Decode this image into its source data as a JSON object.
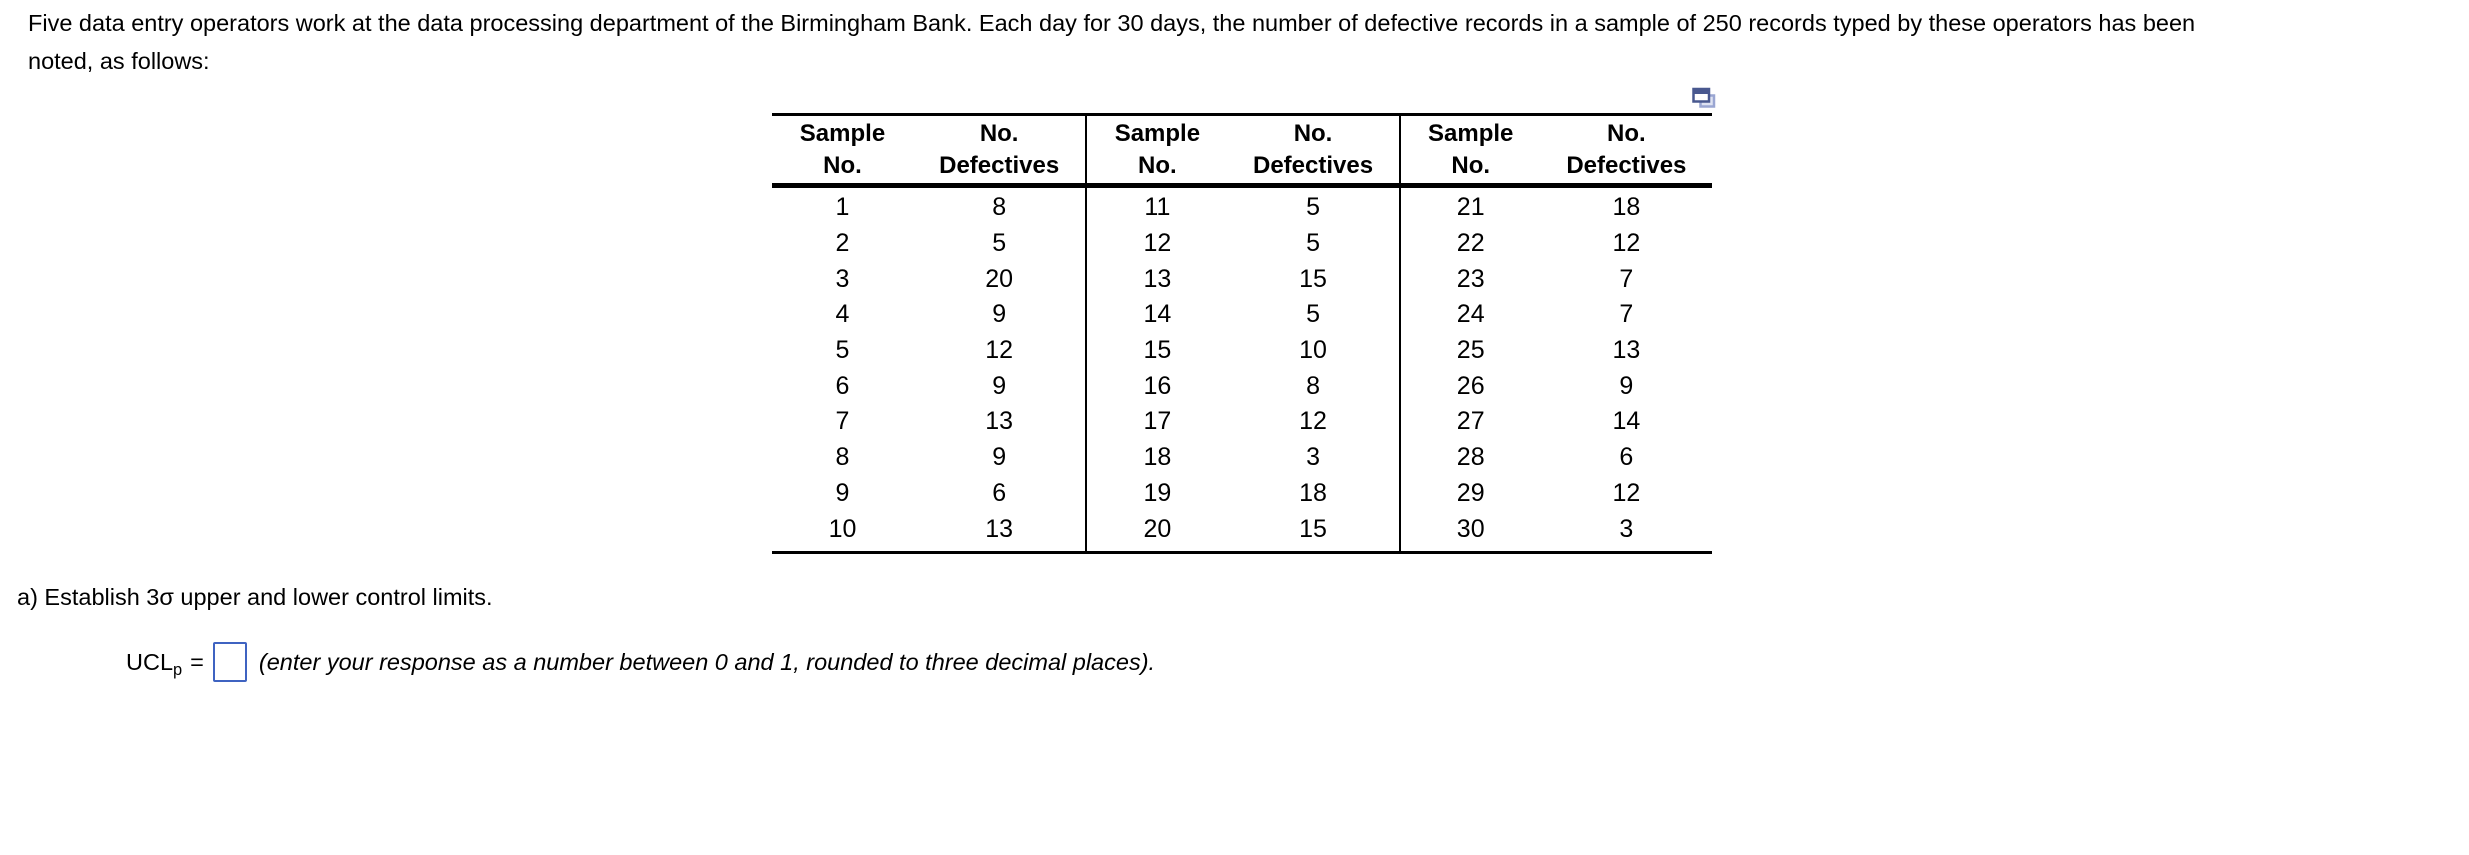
{
  "intro": {
    "line1": "Five data entry operators work at the data processing department of the Birmingham Bank. Each day for 30 days, the number of defective records in a sample of 250 records typed by these operators has been",
    "line2": "noted, as follows:"
  },
  "icons": {
    "table_copy": "overlapping-windows-copy"
  },
  "table": {
    "headers": {
      "sample_line1": "Sample",
      "sample_line2": "No.",
      "defectives_line1": "No.",
      "defectives_line2": "Defectives"
    },
    "rows": [
      [
        "1",
        "8",
        "11",
        "5",
        "21",
        "18"
      ],
      [
        "2",
        "5",
        "12",
        "5",
        "22",
        "12"
      ],
      [
        "3",
        "20",
        "13",
        "15",
        "23",
        "7"
      ],
      [
        "4",
        "9",
        "14",
        "5",
        "24",
        "7"
      ],
      [
        "5",
        "12",
        "15",
        "10",
        "25",
        "13"
      ],
      [
        "6",
        "9",
        "16",
        "8",
        "26",
        "9"
      ],
      [
        "7",
        "13",
        "17",
        "12",
        "27",
        "14"
      ],
      [
        "8",
        "9",
        "18",
        "3",
        "28",
        "6"
      ],
      [
        "9",
        "6",
        "19",
        "18",
        "29",
        "12"
      ],
      [
        "10",
        "13",
        "20",
        "15",
        "30",
        "3"
      ]
    ]
  },
  "question_a": {
    "text": "a) Establish 3σ upper and lower control limits."
  },
  "answer": {
    "lhs": "UCL",
    "subscript": "p",
    "equals_sign": "=",
    "input_value": "",
    "instruction": "(enter your response as a number between 0 and 1, rounded to three decimal places)."
  },
  "colors": {
    "text": "#000000",
    "table_border": "#000000",
    "input_border": "#3f63c1",
    "icon_front": "#49588f",
    "icon_back_stroke": "#9aa6d2",
    "icon_back_fill": "#dfe3f2"
  }
}
